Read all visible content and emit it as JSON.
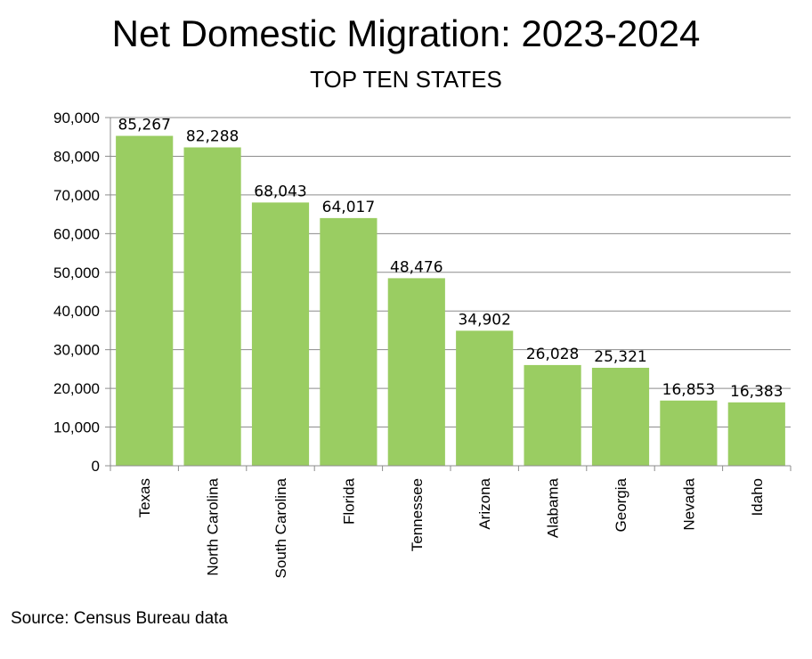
{
  "chart_data": {
    "type": "bar",
    "title": "Net Domestic Migration: 2023-2024",
    "subtitle": "TOP TEN STATES",
    "categories": [
      "Texas",
      "North Carolina",
      "South Carolina",
      "Florida",
      "Tennessee",
      "Arizona",
      "Alabama",
      "Georgia",
      "Nevada",
      "Idaho"
    ],
    "values": [
      85267,
      82288,
      68043,
      64017,
      48476,
      34902,
      26028,
      25321,
      16853,
      16383
    ],
    "data_labels": [
      "85,267",
      "82,288",
      "68,043",
      "64,017",
      "48,476",
      "34,902",
      "26,028",
      "25,321",
      "16,853",
      "16,383"
    ],
    "ylim": [
      0,
      90000
    ],
    "yticks": [
      0,
      10000,
      20000,
      30000,
      40000,
      50000,
      60000,
      70000,
      80000,
      90000
    ],
    "ytick_labels": [
      "0",
      "10,000",
      "20,000",
      "30,000",
      "40,000",
      "50,000",
      "60,000",
      "70,000",
      "80,000",
      "90,000"
    ],
    "grid": true,
    "bar_color": "#9ACD62",
    "xlabel": "",
    "ylabel": ""
  },
  "source_note": "Source: Census Bureau data"
}
